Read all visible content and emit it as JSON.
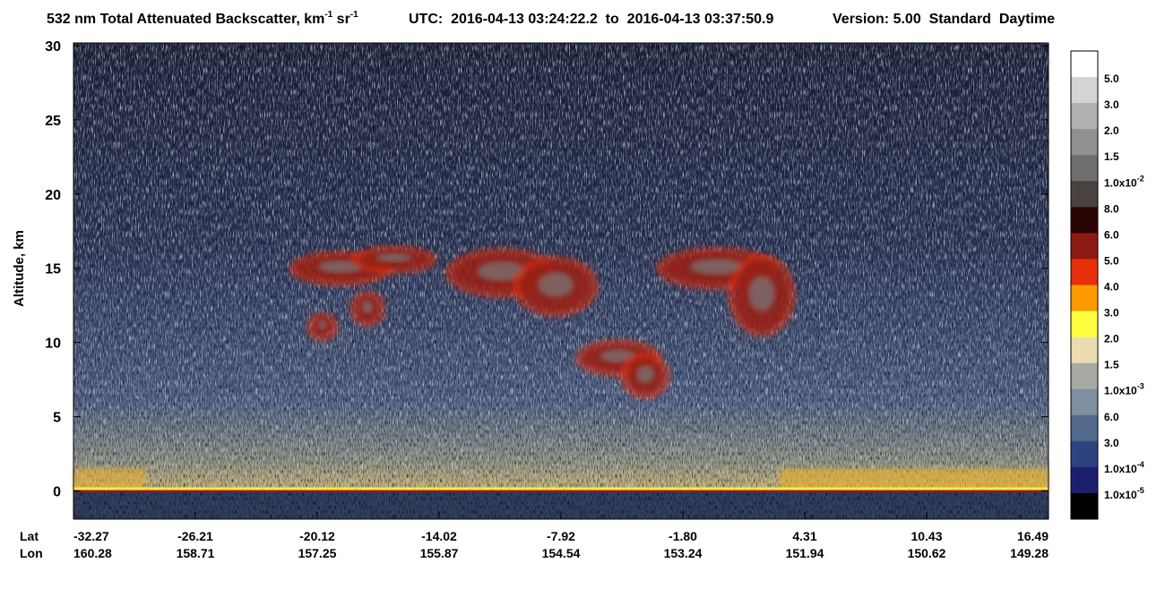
{
  "chart_data": {
    "type": "heatmap",
    "title": {
      "text": "532 nm Total Attenuated Backscatter, km",
      "sup1": "-1",
      "text2": " sr",
      "sup2": "-1"
    },
    "time_info": "UTC:  2016-04-13 03:24:22.2  to  2016-04-13 03:37:50.9",
    "version_info": "Version: 5.00  Standard  Daytime",
    "y_label": "Altitude, km",
    "ylim": [
      -1.9,
      30
    ],
    "yticks": [
      0,
      5,
      10,
      15,
      20,
      25,
      30
    ],
    "x_row_labels": [
      "Lat",
      "Lon"
    ],
    "lat": [
      "-32.27",
      "-26.21",
      "-20.12",
      "-14.02",
      "-7.92",
      "-1.80",
      "4.31",
      "10.43",
      "16.49"
    ],
    "lon": [
      "160.28",
      "158.71",
      "157.25",
      "155.87",
      "154.54",
      "153.24",
      "151.94",
      "150.62",
      "149.28"
    ],
    "colorbar": {
      "colors": [
        "#ffffff",
        "#d4d4d4",
        "#b0b0b0",
        "#909090",
        "#6e6e6e",
        "#4a4240",
        "#2b0404",
        "#8b1a12",
        "#e8300c",
        "#ff9a00",
        "#ffff40",
        "#ecdcb0",
        "#a8aba3",
        "#7e8fa1",
        "#52698c",
        "#2e4280",
        "#1d1f6e",
        "#000000"
      ],
      "labels": [
        "5.0",
        "3.0",
        "2.0",
        "1.5",
        "1.0x10",
        "8.0",
        "6.0",
        "5.0",
        "4.0",
        "3.0",
        "2.0",
        "1.5",
        "1.0x10",
        "6.0",
        "3.0",
        "1.0x10",
        "1.0x10"
      ],
      "exponents": [
        null,
        null,
        null,
        null,
        "-2",
        null,
        null,
        null,
        null,
        null,
        null,
        null,
        "-3",
        null,
        null,
        "-4",
        "-5"
      ]
    }
  }
}
